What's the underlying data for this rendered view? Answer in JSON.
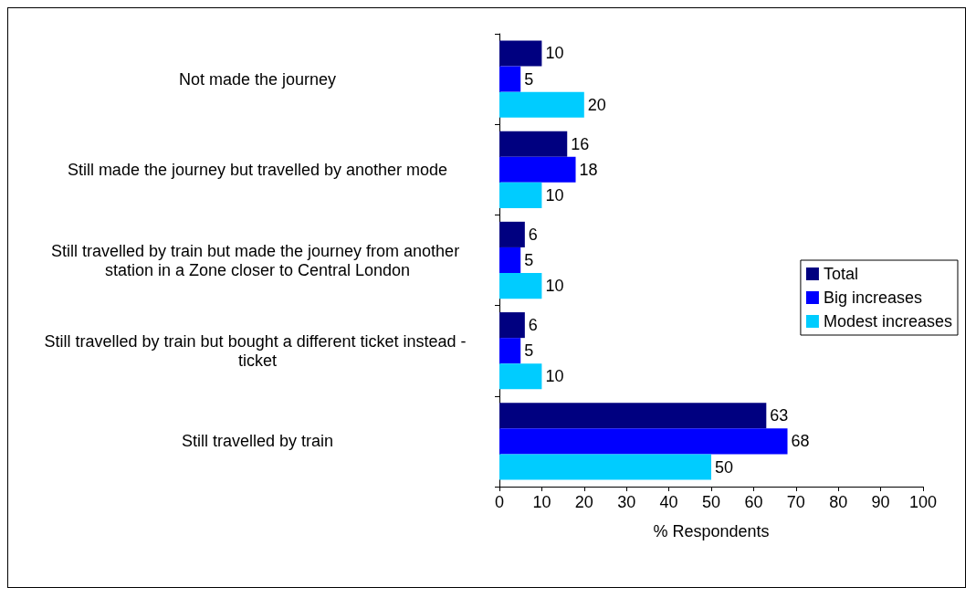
{
  "chart_data": {
    "type": "bar",
    "orientation": "horizontal",
    "xlabel": "% Respondents",
    "categories": [
      "Not made the journey",
      "Still made the journey but travelled by another mode",
      "Still travelled by train but made the journey from another station in a Zone closer to Central London",
      "Still travelled by train but bought a different ticket instead - ticket",
      "Still travelled by train"
    ],
    "series": [
      {
        "name": "Total",
        "color": "#000080",
        "values": [
          10,
          16,
          6,
          6,
          63
        ]
      },
      {
        "name": "Big increases",
        "color": "#0000ff",
        "values": [
          5,
          18,
          5,
          5,
          68
        ]
      },
      {
        "name": "Modest increases",
        "color": "#00ccff",
        "values": [
          20,
          10,
          10,
          10,
          50
        ]
      }
    ],
    "xlim": [
      0,
      100
    ],
    "xticks": [
      0,
      10,
      20,
      30,
      40,
      50,
      60,
      70,
      80,
      90,
      100
    ],
    "data_labels": true,
    "grid": false,
    "legend": "right"
  }
}
